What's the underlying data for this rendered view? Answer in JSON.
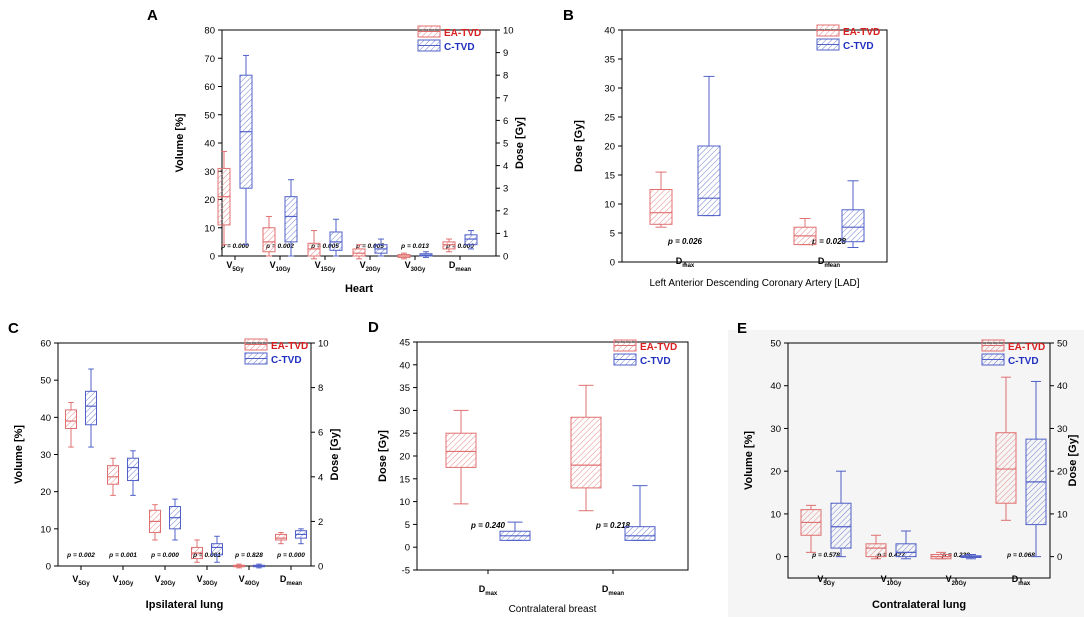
{
  "colors": {
    "ea": "#e07070",
    "c": "#5060c8",
    "ea_text": "#d82020",
    "c_text": "#2030c0"
  },
  "legend": {
    "ea_label": "EA-TVD",
    "c_label": "C-TVD"
  },
  "chart_data": [
    {
      "id": "A",
      "type": "box",
      "panel_label": "A",
      "xlabel": "Heart",
      "ylabel_left": "Volume [%]",
      "ylabel_right": "Dose [Gy]",
      "ylim_left": [
        0,
        80
      ],
      "yticks_left": [
        0,
        10,
        20,
        30,
        40,
        50,
        60,
        70,
        80
      ],
      "ylim_right": [
        0,
        10
      ],
      "yticks_right": [
        0,
        1,
        2,
        3,
        4,
        5,
        6,
        7,
        8,
        9,
        10
      ],
      "categories": [
        {
          "main": "V",
          "sub": "5Gy",
          "p": "p = 0.000"
        },
        {
          "main": "V",
          "sub": "10Gy",
          "p": "p = 0.002"
        },
        {
          "main": "V",
          "sub": "15Gy",
          "p": "p = 0.005"
        },
        {
          "main": "V",
          "sub": "20Gy",
          "p": "p = 0.005"
        },
        {
          "main": "V",
          "sub": "30Gy",
          "p": "p = 0.013"
        },
        {
          "main": "D",
          "sub": "mean",
          "p": "p = 0.000"
        }
      ],
      "series": [
        {
          "name": "EA-TVD",
          "boxes": [
            {
              "min": 4,
              "q1": 11,
              "med": 21,
              "q3": 31,
              "max": 37
            },
            {
              "min": 0,
              "q1": 1.5,
              "med": 5,
              "q3": 10,
              "max": 14
            },
            {
              "min": -1,
              "q1": 0,
              "med": 2.5,
              "q3": 4.5,
              "max": 9
            },
            {
              "min": -1,
              "q1": 0,
              "med": 1,
              "q3": 2.5,
              "max": 4
            },
            {
              "min": -1,
              "q1": -0.5,
              "med": 0,
              "q3": 0.5,
              "max": 1
            },
            {
              "min": 1.5,
              "q1": 2.5,
              "med": 4,
              "q3": 5,
              "max": 6
            }
          ]
        },
        {
          "name": "C-TVD",
          "boxes": [
            {
              "min": 4,
              "q1": 24,
              "med": 44,
              "q3": 64,
              "max": 71
            },
            {
              "min": 0,
              "q1": 5,
              "med": 14,
              "q3": 21,
              "max": 27
            },
            {
              "min": 0,
              "q1": 2,
              "med": 5,
              "q3": 8.5,
              "max": 13
            },
            {
              "min": 0,
              "q1": 1,
              "med": 2.5,
              "q3": 4,
              "max": 6
            },
            {
              "min": -0.5,
              "q1": 0,
              "med": 0.3,
              "q3": 0.8,
              "max": 1.5
            },
            {
              "min": 2.5,
              "q1": 4,
              "med": 6,
              "q3": 7.5,
              "max": 9
            }
          ]
        }
      ]
    },
    {
      "id": "B",
      "type": "box",
      "panel_label": "B",
      "xlabel": "Left Anterior Descending Coronary Artery [LAD]",
      "ylabel_left": "Dose [Gy]",
      "ylim_left": [
        0,
        40
      ],
      "yticks_left": [
        0,
        5,
        10,
        15,
        20,
        25,
        30,
        35,
        40
      ],
      "categories": [
        {
          "main": "D",
          "sub": "max",
          "p": "p = 0.026"
        },
        {
          "main": "D",
          "sub": "mean",
          "p": "p = 0.028"
        }
      ],
      "series": [
        {
          "name": "EA-TVD",
          "boxes": [
            {
              "min": 6,
              "q1": 6.5,
              "med": 8.5,
              "q3": 12.5,
              "max": 15.5
            },
            {
              "min": 3,
              "q1": 3,
              "med": 4.5,
              "q3": 6,
              "max": 7.5
            }
          ]
        },
        {
          "name": "C-TVD",
          "boxes": [
            {
              "min": 8,
              "q1": 8,
              "med": 11,
              "q3": 20,
              "max": 32
            },
            {
              "min": 2.5,
              "q1": 3.5,
              "med": 6,
              "q3": 9,
              "max": 14
            }
          ]
        }
      ]
    },
    {
      "id": "C",
      "type": "box",
      "panel_label": "C",
      "xlabel": "Ipsilateral lung",
      "ylabel_left": "Volume [%]",
      "ylabel_right": "Dose [Gy]",
      "ylim_left": [
        0,
        60
      ],
      "yticks_left": [
        0,
        10,
        20,
        30,
        40,
        50,
        60
      ],
      "ylim_right": [
        0,
        10
      ],
      "yticks_right": [
        0,
        2,
        4,
        6,
        8,
        10
      ],
      "categories": [
        {
          "main": "V",
          "sub": "5Gy",
          "p": "p = 0.002"
        },
        {
          "main": "V",
          "sub": "10Gy",
          "p": "p = 0.001"
        },
        {
          "main": "V",
          "sub": "20Gy",
          "p": "p = 0.000"
        },
        {
          "main": "V",
          "sub": "30Gy",
          "p": "p = 0.001"
        },
        {
          "main": "V",
          "sub": "40Gy",
          "p": "p = 0.828"
        },
        {
          "main": "D",
          "sub": "mean",
          "p": "p = 0.000"
        }
      ],
      "series": [
        {
          "name": "EA-TVD",
          "boxes": [
            {
              "min": 32,
              "q1": 37,
              "med": 39,
              "q3": 42,
              "max": 44
            },
            {
              "min": 19,
              "q1": 22,
              "med": 24,
              "q3": 27,
              "max": 29
            },
            {
              "min": 7,
              "q1": 9,
              "med": 12,
              "q3": 15,
              "max": 16.5
            },
            {
              "min": 1,
              "q1": 2,
              "med": 3.5,
              "q3": 5,
              "max": 7
            },
            {
              "min": -0.5,
              "q1": 0,
              "med": 0,
              "q3": 0.2,
              "max": 0.5
            },
            {
              "min": 6,
              "q1": 7,
              "med": 7.5,
              "q3": 8.5,
              "max": 9
            }
          ]
        },
        {
          "name": "C-TVD",
          "boxes": [
            {
              "min": 32,
              "q1": 38,
              "med": 43,
              "q3": 47,
              "max": 53
            },
            {
              "min": 19,
              "q1": 23,
              "med": 26.5,
              "q3": 29,
              "max": 31
            },
            {
              "min": 7,
              "q1": 10,
              "med": 13,
              "q3": 16,
              "max": 18
            },
            {
              "min": 1,
              "q1": 3,
              "med": 5,
              "q3": 6,
              "max": 8
            },
            {
              "min": -0.5,
              "q1": 0,
              "med": 0,
              "q3": 0.2,
              "max": 0.5
            },
            {
              "min": 6,
              "q1": 7.5,
              "med": 8.5,
              "q3": 9.5,
              "max": 10
            }
          ]
        }
      ]
    },
    {
      "id": "D",
      "type": "box",
      "panel_label": "D",
      "xlabel": "Contralateral breast",
      "ylabel_left": "Dose [Gy]",
      "ylim_left": [
        -5,
        45
      ],
      "yticks_left": [
        -5,
        0,
        5,
        10,
        15,
        20,
        25,
        30,
        35,
        40,
        45
      ],
      "categories": [
        {
          "main": "D",
          "sub": "max",
          "p": "p = 0.240"
        },
        {
          "main": "D",
          "sub": "mean",
          "p": "p = 0.218"
        }
      ],
      "series": [
        {
          "name": "EA-TVD",
          "boxes": [
            {
              "min": 9.5,
              "q1": 17.5,
              "med": 21,
              "q3": 25,
              "max": 30
            },
            {
              "min": 8,
              "q1": 13,
              "med": 18,
              "q3": 28.5,
              "max": 35.5
            }
          ]
        },
        {
          "name": "C-TVD",
          "boxes": [
            {
              "min": 1.5,
              "q1": 1.5,
              "med": 2.5,
              "q3": 3.5,
              "max": 5.5
            },
            {
              "min": 1.5,
              "q1": 1.5,
              "med": 2.5,
              "q3": 4.5,
              "max": 13.5
            }
          ]
        }
      ]
    },
    {
      "id": "E",
      "type": "box",
      "panel_label": "E",
      "xlabel": "Contralateral lung",
      "ylabel_left": "Volume [%]",
      "ylabel_right": "Dose [Gy]",
      "ylim_left": [
        -5,
        50
      ],
      "yticks_left": [
        0,
        10,
        20,
        30,
        40,
        50
      ],
      "ylim_right": [
        -5,
        50
      ],
      "yticks_right": [
        0,
        10,
        20,
        30,
        40,
        50
      ],
      "categories": [
        {
          "main": "V",
          "sub": "5Gy",
          "p": "p = 0.578"
        },
        {
          "main": "V",
          "sub": "10Gy",
          "p": "p = 0.427"
        },
        {
          "main": "V",
          "sub": "20Gy",
          "p": "p = 0.239"
        },
        {
          "main": "D",
          "sub": "max",
          "p": "p = 0.068"
        }
      ],
      "series": [
        {
          "name": "EA-TVD",
          "boxes": [
            {
              "min": 1,
              "q1": 5,
              "med": 8,
              "q3": 11,
              "max": 12
            },
            {
              "min": -0.5,
              "q1": 0,
              "med": 2,
              "q3": 3,
              "max": 5
            },
            {
              "min": -0.5,
              "q1": -0.5,
              "med": 0,
              "q3": 0.5,
              "max": 1
            },
            {
              "min": 8.5,
              "q1": 12.5,
              "med": 20.5,
              "q3": 29,
              "max": 42
            }
          ]
        },
        {
          "name": "C-TVD",
          "boxes": [
            {
              "min": 0,
              "q1": 2,
              "med": 7,
              "q3": 12.5,
              "max": 20
            },
            {
              "min": -0.5,
              "q1": 0,
              "med": 1,
              "q3": 3,
              "max": 6
            },
            {
              "min": -0.5,
              "q1": -0.2,
              "med": 0,
              "q3": 0.2,
              "max": 0.5
            },
            {
              "min": 0,
              "q1": 7.5,
              "med": 17.5,
              "q3": 27.5,
              "max": 41
            }
          ]
        }
      ]
    }
  ]
}
